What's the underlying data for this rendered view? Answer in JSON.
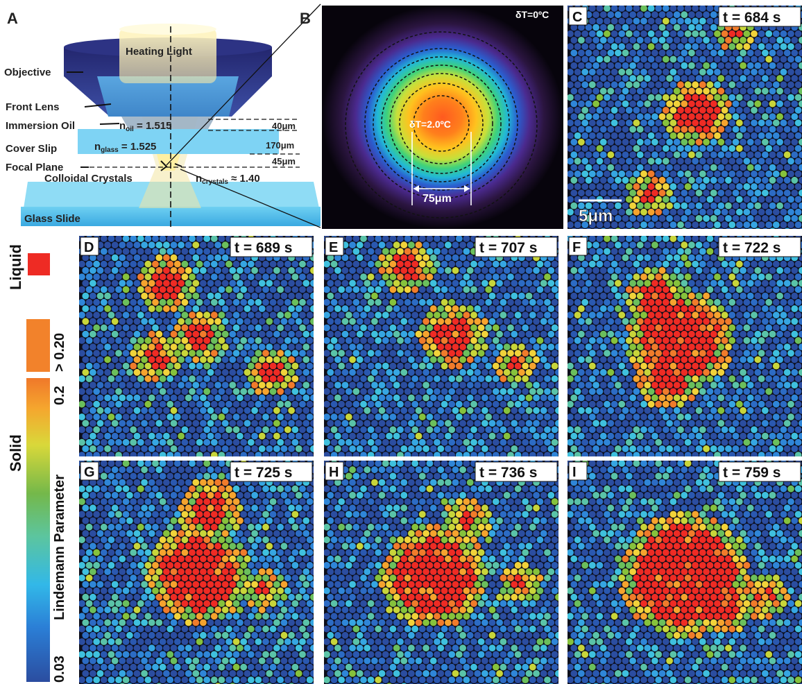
{
  "panel_a": {
    "letter": "A",
    "heating_light": "Heating Light",
    "objective": "Objective",
    "front_lens": "Front Lens",
    "immersion_oil": "Immersion Oil",
    "n_oil_symbol": "n",
    "n_oil_sub": "oil",
    "n_oil_value": " = 1.515",
    "cover_slip": "Cover Slip",
    "n_glass_symbol": "n",
    "n_glass_sub": "glass",
    "n_glass_value": " = 1.525",
    "focal_plane": "Focal Plane",
    "colloidal_crystals": "Colloidal Crystals",
    "n_crystals_symbol": "n",
    "n_crystals_sub": "crystals",
    "n_crystals_value": " ≈ 1.40",
    "glass_slide": "Glass Slide",
    "dim_oil": "40μm",
    "dim_glass": "170μm",
    "dim_focal": "45μm"
  },
  "panel_b": {
    "letter": "B",
    "outer_label": "δT=0ºC",
    "inner_label": "δT=2.0ºC",
    "width_label": "75μm"
  },
  "panels": [
    {
      "id": "C",
      "time": "t = 684 s",
      "seed": 11,
      "clusters": [
        [
          0.55,
          0.48,
          0.09
        ],
        [
          0.35,
          0.85,
          0.04
        ],
        [
          0.72,
          0.12,
          0.03
        ]
      ]
    },
    {
      "id": "D",
      "time": "t = 689 s",
      "seed": 22,
      "clusters": [
        [
          0.38,
          0.22,
          0.07
        ],
        [
          0.52,
          0.45,
          0.06
        ],
        [
          0.33,
          0.55,
          0.05
        ],
        [
          0.82,
          0.62,
          0.05
        ]
      ]
    },
    {
      "id": "E",
      "time": "t = 707 s",
      "seed": 33,
      "clusters": [
        [
          0.55,
          0.45,
          0.09
        ],
        [
          0.35,
          0.14,
          0.06
        ],
        [
          0.82,
          0.58,
          0.03
        ]
      ]
    },
    {
      "id": "F",
      "time": "t = 722 s",
      "seed": 44,
      "clusters": [
        [
          0.48,
          0.47,
          0.17
        ],
        [
          0.38,
          0.28,
          0.07
        ],
        [
          0.43,
          0.65,
          0.08
        ]
      ]
    },
    {
      "id": "G",
      "time": "t = 725 s",
      "seed": 55,
      "clusters": [
        [
          0.51,
          0.51,
          0.16
        ],
        [
          0.56,
          0.22,
          0.08
        ],
        [
          0.79,
          0.58,
          0.03
        ]
      ]
    },
    {
      "id": "H",
      "time": "t = 736 s",
      "seed": 66,
      "clusters": [
        [
          0.47,
          0.52,
          0.17
        ],
        [
          0.61,
          0.27,
          0.04
        ],
        [
          0.84,
          0.55,
          0.03
        ]
      ]
    },
    {
      "id": "I",
      "time": "t = 759 s",
      "seed": 77,
      "clusters": [
        [
          0.5,
          0.51,
          0.22
        ],
        [
          0.68,
          0.64,
          0.07
        ],
        [
          0.84,
          0.6,
          0.04
        ]
      ]
    }
  ],
  "scale_bar": "5μm",
  "legend": {
    "liquid_label": "Liquid",
    "solid_label": "Solid",
    "gt_label": "> 0.20",
    "top_value": "0.2",
    "bottom_value": "0.03",
    "axis_label": "Lindemann Parameter",
    "liquid_color": "#ee2b24",
    "gt_color": "#f2822b"
  },
  "colors": {
    "panel_bg": "#0c0e1a",
    "overlay_red": "#ee2b24"
  }
}
